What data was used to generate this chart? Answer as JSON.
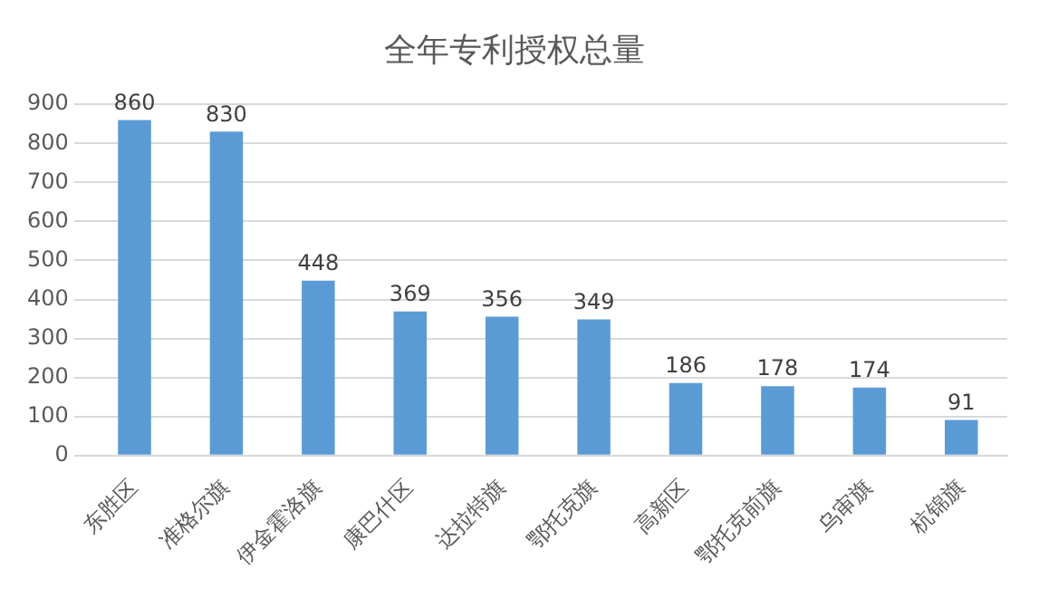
{
  "chart_data": {
    "type": "bar",
    "title": "全年专利授权总量",
    "categories": [
      "东胜区",
      "准格尔旗",
      "伊金霍洛旗",
      "康巴什区",
      "达拉特旗",
      "鄂托克旗",
      "高新区",
      "鄂托克前旗",
      "乌审旗",
      "杭锦旗"
    ],
    "values": [
      860,
      830,
      448,
      369,
      356,
      349,
      186,
      178,
      174,
      91
    ],
    "color": "#5b9bd5",
    "ylim": [
      0,
      900
    ],
    "yticks": [
      0,
      100,
      200,
      300,
      400,
      500,
      600,
      700,
      800,
      900
    ],
    "grid": "y",
    "data_labels": true,
    "legend": false
  }
}
